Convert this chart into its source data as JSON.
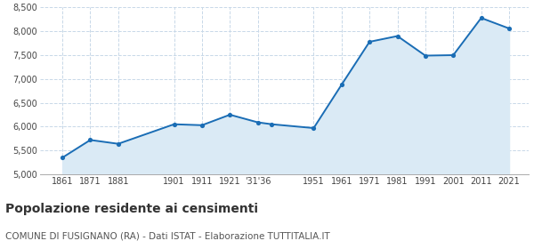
{
  "years": [
    1861,
    1871,
    1881,
    1901,
    1911,
    1921,
    1931,
    1936,
    1951,
    1961,
    1971,
    1981,
    1991,
    2001,
    2011,
    2021
  ],
  "population": [
    5350,
    5720,
    5640,
    6050,
    6030,
    6250,
    6090,
    6050,
    5970,
    6880,
    7780,
    7900,
    7490,
    7500,
    8280,
    8060
  ],
  "ylim": [
    5000,
    8500
  ],
  "yticks": [
    5000,
    5500,
    6000,
    6500,
    7000,
    7500,
    8000,
    8500
  ],
  "x_tick_positions": [
    1861,
    1871,
    1881,
    1901,
    1911,
    1921,
    1931,
    1951,
    1961,
    1971,
    1981,
    1991,
    2001,
    2011,
    2021
  ],
  "x_tick_labels": [
    "1861",
    "1871",
    "1881",
    "1901",
    "1911",
    "1921",
    "'31'36",
    "1951",
    "1961",
    "1971",
    "1981",
    "1991",
    "2001",
    "2011",
    "2021"
  ],
  "xlim_left": 1853,
  "xlim_right": 2028,
  "line_color": "#1a6db5",
  "fill_color": "#daeaf5",
  "marker_color": "#1a6db5",
  "bg_color": "#ffffff",
  "grid_color": "#c8d8e8",
  "title": "Popolazione residente ai censimenti",
  "subtitle": "COMUNE DI FUSIGNANO (RA) - Dati ISTAT - Elaborazione TUTTITALIA.IT",
  "title_fontsize": 10,
  "subtitle_fontsize": 7.5,
  "tick_fontsize": 7,
  "ytick_fontsize": 7
}
